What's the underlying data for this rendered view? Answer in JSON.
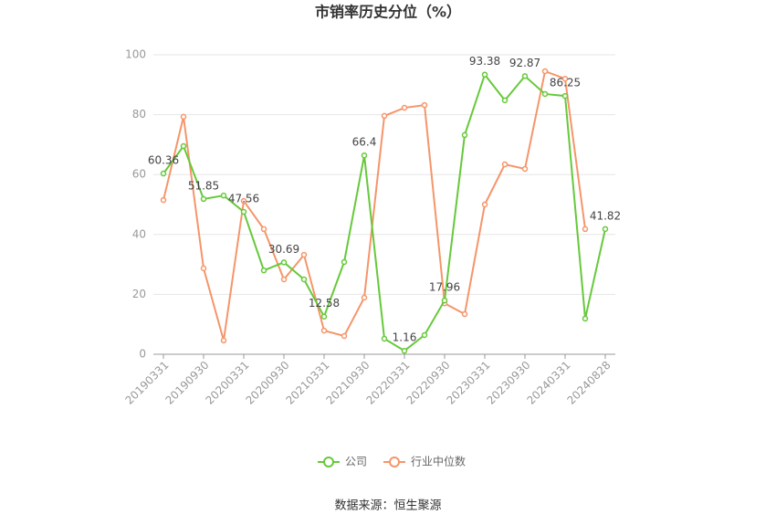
{
  "chart_data": {
    "type": "line",
    "title": "市销率历史分位（%）",
    "categories": [
      "20190331",
      null,
      "20190930",
      null,
      "20200331",
      null,
      "20200930",
      null,
      "20210331",
      null,
      "20210930",
      null,
      "20220331",
      null,
      "20220930",
      null,
      "20230331",
      null,
      "20230930",
      null,
      "20240331",
      null,
      "20240828"
    ],
    "series": [
      {
        "name": "公司",
        "color": "#66c93a",
        "values": [
          60.36,
          69.5,
          51.85,
          53,
          47.56,
          28,
          30.69,
          25,
          12.58,
          30.8,
          66.4,
          5.2,
          1.16,
          6.4,
          17.96,
          73.2,
          93.38,
          84.8,
          92.87,
          86.9,
          86.25,
          11.9,
          41.82
        ]
      },
      {
        "name": "行业中位数",
        "color": "#f5956a",
        "values": [
          51.5,
          79.3,
          28.7,
          4.6,
          51.2,
          41.8,
          25,
          33.2,
          7.9,
          6.1,
          18.9,
          79.6,
          82.3,
          83.2,
          17,
          13.4,
          50,
          63.4,
          61.9,
          94.5,
          92,
          41.8,
          null
        ]
      }
    ],
    "ylim": [
      0,
      100
    ],
    "yticks": [
      0,
      20,
      40,
      60,
      80,
      100
    ],
    "grid": true,
    "source": "数据来源：恒生聚源"
  }
}
